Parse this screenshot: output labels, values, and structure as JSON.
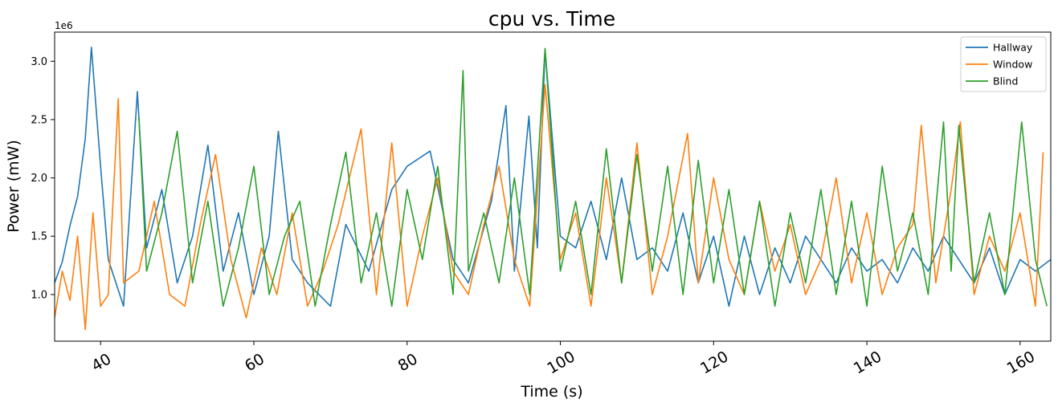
{
  "chart_data": {
    "type": "line",
    "title": "cpu vs. Time",
    "xlabel": "Time (s)",
    "ylabel": "Power (mW)",
    "y_scale_label": "1e6",
    "xlim": [
      34,
      164
    ],
    "ylim": [
      600000,
      3250000
    ],
    "xticks": [
      40,
      60,
      80,
      100,
      120,
      140,
      160
    ],
    "yticks": [
      1000000,
      1500000,
      2000000,
      2500000,
      3000000
    ],
    "ytick_labels": [
      "1.0",
      "1.5",
      "2.0",
      "2.5",
      "3.0"
    ],
    "legend_position": "top-right",
    "grid": false,
    "series": [
      {
        "name": "Hallway",
        "color": "#1f77b4",
        "x": [
          34,
          35,
          36,
          37,
          38,
          38.8,
          40,
          41,
          43,
          44.8,
          46,
          48,
          50,
          52,
          54,
          56,
          58,
          60,
          62,
          63.2,
          65,
          67,
          70,
          72,
          75,
          78,
          80,
          83,
          86,
          88,
          91,
          92.9,
          94,
          95.9,
          97,
          98,
          100,
          102,
          104,
          106,
          108,
          110,
          112,
          114,
          116,
          118,
          120,
          122,
          124,
          126,
          128,
          130,
          132,
          134,
          136,
          138,
          140,
          142,
          144,
          146,
          148,
          150,
          152,
          154,
          156,
          158,
          160,
          162,
          164
        ],
        "y": [
          1100000,
          1280000,
          1590000,
          1840000,
          2340000,
          3120000,
          2100000,
          1300000,
          900000,
          2740000,
          1400000,
          1900000,
          1100000,
          1500000,
          2280000,
          1200000,
          1700000,
          1000000,
          1500000,
          2400000,
          1300000,
          1100000,
          900000,
          1600000,
          1200000,
          1900000,
          2100000,
          2230000,
          1300000,
          1100000,
          1800000,
          2620000,
          1200000,
          2530000,
          1400000,
          3100000,
          1500000,
          1400000,
          1800000,
          1300000,
          2000000,
          1300000,
          1400000,
          1200000,
          1700000,
          1100000,
          1500000,
          900000,
          1500000,
          1000000,
          1400000,
          1100000,
          1500000,
          1300000,
          1100000,
          1400000,
          1200000,
          1300000,
          1100000,
          1400000,
          1200000,
          1500000,
          1300000,
          1100000,
          1400000,
          1000000,
          1300000,
          1200000,
          1300000
        ]
      },
      {
        "name": "Window",
        "color": "#ff7f0e",
        "x": [
          34,
          35,
          36,
          37,
          38,
          39,
          40,
          41,
          42.3,
          43,
          45,
          47,
          49,
          51,
          53,
          55,
          57,
          59,
          61,
          63,
          65,
          67,
          69,
          71,
          74,
          76,
          78,
          80,
          82,
          84,
          86,
          88,
          90,
          92,
          94,
          96,
          98,
          100,
          102,
          104,
          106,
          108,
          110,
          112,
          114,
          116.6,
          118,
          120,
          122,
          124,
          126,
          128,
          130,
          132,
          134,
          136,
          138,
          140,
          142,
          144,
          146,
          147.1,
          149,
          151,
          152.2,
          154,
          156,
          158,
          160,
          162,
          163
        ],
        "y": [
          800000,
          1200000,
          950000,
          1500000,
          700000,
          1700000,
          900000,
          1000000,
          2680000,
          1100000,
          1200000,
          1800000,
          1000000,
          900000,
          1600000,
          2200000,
          1300000,
          800000,
          1400000,
          1000000,
          1700000,
          900000,
          1200000,
          1600000,
          2420000,
          1000000,
          2300000,
          900000,
          1500000,
          2000000,
          1200000,
          1000000,
          1600000,
          2100000,
          1300000,
          900000,
          2800000,
          1300000,
          1700000,
          900000,
          2000000,
          1100000,
          2300000,
          1000000,
          1500000,
          2380000,
          1100000,
          2000000,
          1300000,
          1000000,
          1800000,
          1200000,
          1600000,
          1000000,
          1300000,
          2000000,
          1100000,
          1700000,
          1000000,
          1400000,
          1600000,
          2450000,
          1100000,
          1900000,
          2480000,
          1000000,
          1500000,
          1200000,
          1700000,
          900000,
          2220000
        ]
      },
      {
        "name": "Blind",
        "color": "#2ca02c",
        "x": [
          45,
          46,
          48,
          50,
          52,
          54,
          56,
          58,
          60,
          62,
          64,
          66,
          68,
          70,
          72,
          74,
          76,
          78,
          80,
          82,
          84,
          86,
          87.3,
          88,
          90,
          92,
          94,
          96,
          98,
          100,
          102,
          104,
          106,
          108,
          110,
          112,
          114,
          116,
          118,
          120,
          122,
          124,
          126,
          128,
          130,
          132,
          134,
          136,
          138,
          140,
          142,
          144,
          146,
          148,
          150,
          151,
          152,
          154,
          156,
          158,
          160.2,
          162,
          163.5
        ],
        "y": [
          2520000,
          1200000,
          1700000,
          2400000,
          1100000,
          1800000,
          900000,
          1400000,
          2100000,
          1000000,
          1500000,
          1800000,
          900000,
          1600000,
          2220000,
          1100000,
          1700000,
          900000,
          1900000,
          1300000,
          2100000,
          1000000,
          2920000,
          1200000,
          1700000,
          1100000,
          2000000,
          1000000,
          3110000,
          1200000,
          1800000,
          1000000,
          2250000,
          1100000,
          2200000,
          1200000,
          2100000,
          1000000,
          2150000,
          1100000,
          1900000,
          1000000,
          1800000,
          900000,
          1700000,
          1100000,
          1900000,
          1000000,
          1800000,
          900000,
          2100000,
          1200000,
          1700000,
          1000000,
          2480000,
          1200000,
          2450000,
          1100000,
          1700000,
          1000000,
          2480000,
          1300000,
          900000
        ]
      }
    ]
  }
}
